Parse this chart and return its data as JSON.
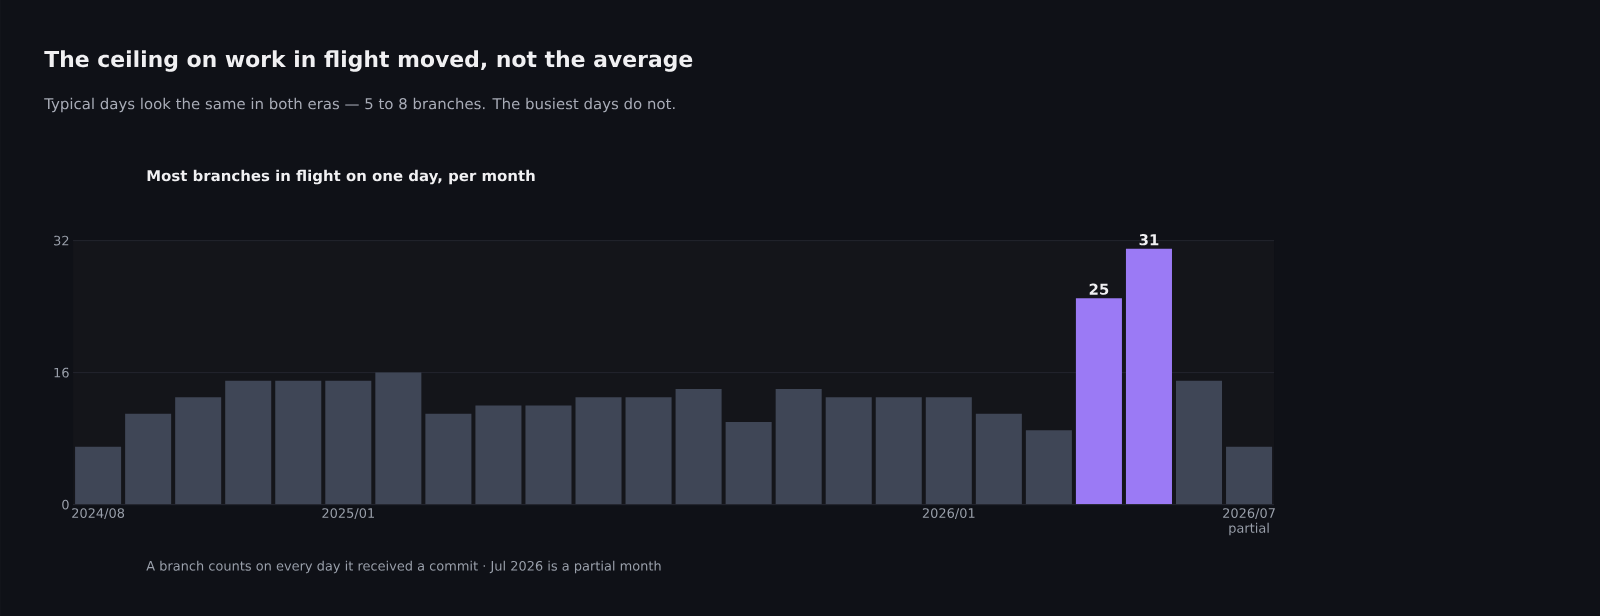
{
  "chart_data": {
    "type": "bar",
    "title": "The ceiling on work in flight moved, not the average",
    "subtitle": "Typical days look the same in both eras — 5 to 8 branches. The busiest days do not.",
    "categories": [
      "2024/08",
      null,
      null,
      null,
      null,
      "2025/01",
      null,
      null,
      null,
      null,
      null,
      null,
      null,
      null,
      null,
      null,
      null,
      "2026/01",
      null,
      null,
      null,
      null,
      null,
      "2026/07 partial"
    ],
    "values": [
      7,
      11,
      13,
      15,
      15,
      15,
      16,
      11,
      12,
      12,
      13,
      13,
      14,
      10,
      14,
      13,
      13,
      13,
      11,
      9,
      25,
      31,
      15,
      7
    ],
    "colors": [
      "#3f4656",
      "#3f4656",
      "#3f4656",
      "#3f4656",
      "#3f4656",
      "#3f4656",
      "#3f4656",
      "#3f4656",
      "#3f4656",
      "#3f4656",
      "#3f4656",
      "#3f4656",
      "#3f4656",
      "#3f4656",
      "#3f4656",
      "#3f4656",
      "#3f4656",
      "#3f4656",
      "#3f4656",
      "#3f4656",
      "#9b7af5",
      "#9b7af5",
      "#3f4656",
      "#3f4656"
    ],
    "value_labels": [
      null,
      null,
      null,
      null,
      null,
      null,
      null,
      null,
      null,
      null,
      null,
      null,
      null,
      null,
      null,
      null,
      null,
      null,
      null,
      null,
      "25",
      "31",
      null,
      null
    ],
    "ylim": [
      0,
      32
    ],
    "yticks": [
      0,
      16,
      32
    ],
    "grid": "y",
    "annotations": [
      "Most branches in flight on one day, per month",
      "A branch counts on every day it received a commit · Jul 2026 is a partial month"
    ]
  }
}
